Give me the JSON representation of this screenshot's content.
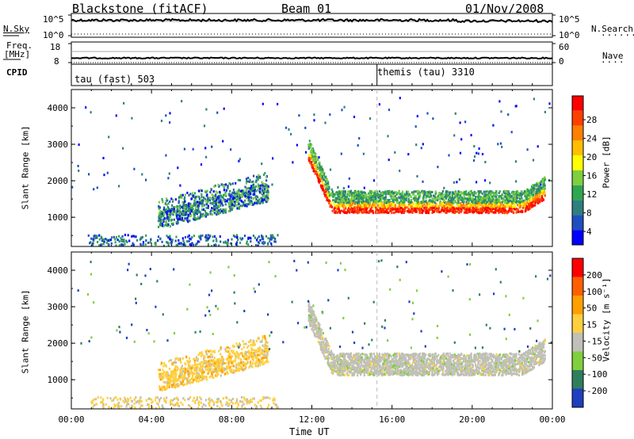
{
  "header": {
    "station": "Blackstone (fitACF)",
    "beam": "Beam 01",
    "date": "01/Nov/2008"
  },
  "strips": {
    "nsky": {
      "label": "N.Sky",
      "ticks": [
        "10^5",
        "10^0"
      ]
    },
    "nsearch": {
      "label": "N.Search",
      "ticks": [
        "10^5",
        "10^0"
      ]
    },
    "freq": {
      "label_1": "Freq.",
      "label_2": "[MHz]",
      "ticks": [
        "18",
        "8"
      ]
    },
    "nave": {
      "label": "Nave",
      "ticks": [
        "60",
        "0"
      ]
    },
    "cpid": {
      "label": "CPID",
      "modes": [
        "tau (fast) 503",
        "themis (tau) 3310"
      ]
    }
  },
  "chart_data": [
    {
      "type": "heatmap",
      "panel": "power",
      "xlabel": "Time UT",
      "ylabel": "Slant Range [km]",
      "x_ticks": [
        "00:00",
        "04:00",
        "08:00",
        "12:00",
        "16:00",
        "20:00",
        "00:00"
      ],
      "y_ticks": [
        "4000",
        "3000",
        "2000",
        "1000"
      ],
      "ylim": [
        200,
        4500
      ],
      "colorbar_label": "Power [dB]",
      "colorbar_ticks": [
        "28",
        "24",
        "20",
        "16",
        "12",
        "8",
        "4"
      ],
      "colors": [
        "#0000ff",
        "#1f4fbf",
        "#2f7f7f",
        "#2fa64f",
        "#7fcf3f",
        "#ffff00",
        "#ffbf00",
        "#ff7f00",
        "#ff3f00",
        "#ff0000"
      ]
    },
    {
      "type": "heatmap",
      "panel": "velocity",
      "xlabel": "Time UT",
      "ylabel": "Slant Range [km]",
      "x_ticks": [
        "00:00",
        "04:00",
        "08:00",
        "12:00",
        "16:00",
        "20:00",
        "00:00"
      ],
      "y_ticks": [
        "4000",
        "3000",
        "2000",
        "1000"
      ],
      "ylim": [
        200,
        4500
      ],
      "colorbar_label": "Velocity [m s⁻¹]",
      "colorbar_ticks": [
        "200",
        "100",
        "50",
        "15",
        "-15",
        "-50",
        "-100",
        "-200"
      ],
      "colors": [
        "#1f3fbf",
        "#2f7f5f",
        "#7fcf3f",
        "#c0c0b8",
        "#ffcf3f",
        "#ff9f00",
        "#ff5f00",
        "#ff0000"
      ]
    }
  ],
  "footer": {
    "xlabel": "Time UT"
  }
}
